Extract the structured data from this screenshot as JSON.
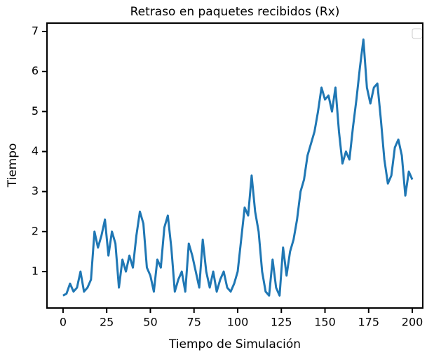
{
  "chart_data": {
    "type": "line",
    "title": "Retraso en paquetes recibidos (Rx)",
    "xlabel": "Tiempo de Simulación",
    "ylabel": "Tiempo",
    "x": [
      0,
      2,
      4,
      6,
      8,
      10,
      12,
      14,
      16,
      18,
      20,
      22,
      24,
      26,
      28,
      30,
      32,
      34,
      36,
      38,
      40,
      42,
      44,
      46,
      48,
      50,
      52,
      54,
      56,
      58,
      60,
      62,
      64,
      66,
      68,
      70,
      72,
      74,
      76,
      78,
      80,
      82,
      84,
      86,
      88,
      90,
      92,
      94,
      96,
      98,
      100,
      102,
      104,
      106,
      108,
      110,
      112,
      114,
      116,
      118,
      120,
      122,
      124,
      126,
      128,
      130,
      132,
      134,
      136,
      138,
      140,
      142,
      144,
      146,
      148,
      150,
      152,
      154,
      156,
      158,
      160,
      162,
      164,
      166,
      168,
      170,
      172,
      174,
      176,
      178,
      180,
      182,
      184,
      186,
      188,
      190,
      192,
      194,
      196,
      198,
      200
    ],
    "series": [
      {
        "color": "#1f77b4",
        "values": [
          0.4,
          0.45,
          0.7,
          0.5,
          0.6,
          1.0,
          0.5,
          0.6,
          0.8,
          2.0,
          1.6,
          1.9,
          2.3,
          1.4,
          2.0,
          1.7,
          0.6,
          1.3,
          1.0,
          1.4,
          1.1,
          1.9,
          2.5,
          2.2,
          1.1,
          0.9,
          0.5,
          1.3,
          1.1,
          2.1,
          2.4,
          1.6,
          0.5,
          0.8,
          1.0,
          0.5,
          1.7,
          1.4,
          1.0,
          0.6,
          1.8,
          1.0,
          0.6,
          1.0,
          0.5,
          0.8,
          1.0,
          0.6,
          0.5,
          0.7,
          1.0,
          1.8,
          2.6,
          2.4,
          3.4,
          2.5,
          2.0,
          1.0,
          0.5,
          0.4,
          1.3,
          0.6,
          0.4,
          1.6,
          0.9,
          1.5,
          1.8,
          2.3,
          3.0,
          3.3,
          3.9,
          4.2,
          4.5,
          5.0,
          5.6,
          5.3,
          5.4,
          5.0,
          5.6,
          4.5,
          3.7,
          4.0,
          3.8,
          4.6,
          5.3,
          6.1,
          6.8,
          5.6,
          5.2,
          5.6,
          5.7,
          4.8,
          3.8,
          3.2,
          3.4,
          4.1,
          4.3,
          3.9,
          2.9,
          3.5,
          3.3
        ]
      }
    ],
    "xlim": [
      -9.2,
      206
    ],
    "ylim": [
      0.09,
      7.21
    ],
    "xticks": [
      0,
      25,
      50,
      75,
      100,
      125,
      150,
      175,
      200
    ],
    "yticks": [
      1,
      2,
      3,
      4,
      5,
      6,
      7
    ]
  }
}
